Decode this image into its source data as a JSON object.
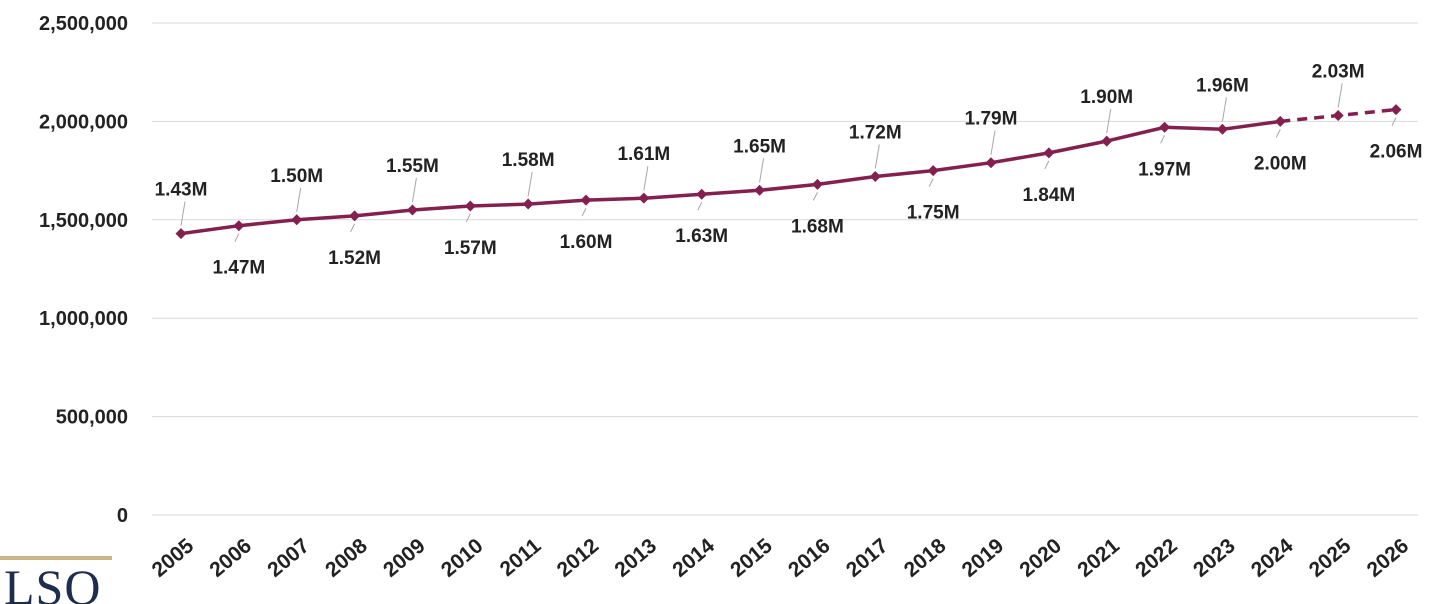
{
  "chart_data": {
    "type": "line",
    "title": "",
    "xlabel": "",
    "ylabel": "",
    "categories": [
      "2005",
      "2006",
      "2007",
      "2008",
      "2009",
      "2010",
      "2011",
      "2012",
      "2013",
      "2014",
      "2015",
      "2016",
      "2017",
      "2018",
      "2019",
      "2020",
      "2021",
      "2022",
      "2023",
      "2024",
      "2025",
      "2026"
    ],
    "series": [
      {
        "values": [
          1430000,
          1470000,
          1500000,
          1520000,
          1550000,
          1570000,
          1580000,
          1600000,
          1610000,
          1630000,
          1650000,
          1680000,
          1720000,
          1750000,
          1790000,
          1840000,
          1900000,
          1970000,
          1960000,
          2000000,
          2030000,
          2060000
        ],
        "labels": [
          "1.43M",
          "1.47M",
          "1.50M",
          "1.52M",
          "1.55M",
          "1.57M",
          "1.58M",
          "1.60M",
          "1.61M",
          "1.63M",
          "1.65M",
          "1.68M",
          "1.72M",
          "1.75M",
          "1.79M",
          "1.84M",
          "1.90M",
          "1.97M",
          "1.96M",
          "2.00M",
          "2.03M",
          "2.06M"
        ],
        "projected_from": "2024",
        "color": "#84204f"
      }
    ],
    "ylim": [
      0,
      2500000
    ],
    "yticks": [
      0,
      500000,
      1000000,
      1500000,
      2000000,
      2500000
    ],
    "ytick_labels": [
      "0",
      "500,000",
      "1,000,000",
      "1,500,000",
      "2,000,000",
      "2,500,000"
    ],
    "grid": true,
    "marker": "diamond",
    "projection_style": "dashed"
  },
  "logo": {
    "text": "LSO",
    "rule_color": "#c9b78a",
    "text_color": "#1f2d4d"
  }
}
